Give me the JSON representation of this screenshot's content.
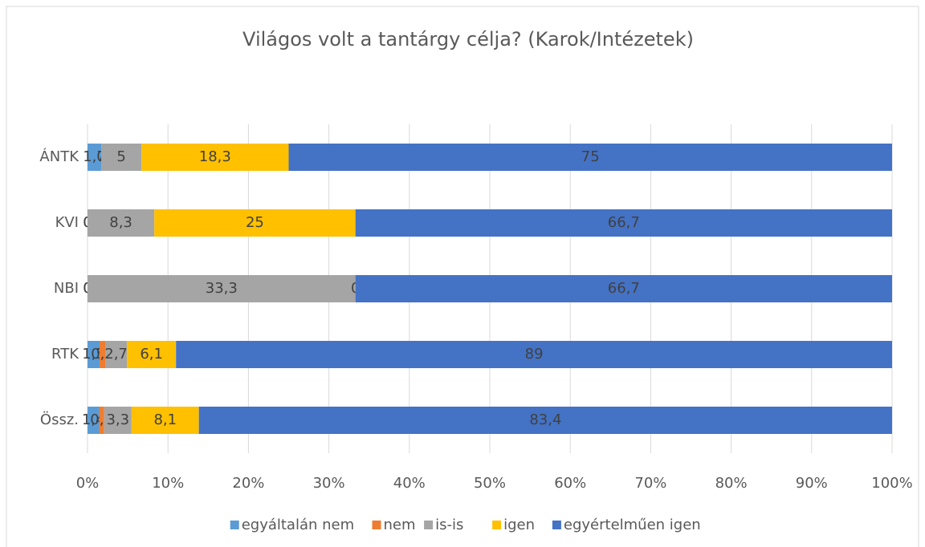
{
  "chart_data": {
    "type": "bar",
    "orientation": "horizontal",
    "stacking": "percent",
    "title": "Világos volt a tantárgy célja? (Karok/Intézetek)",
    "categories": [
      "ÁNTK",
      "KVI",
      "NBI",
      "RTK",
      "Össz."
    ],
    "series": [
      {
        "name": "egyáltalán nem",
        "color": "#5b9bd5",
        "values": [
          1.7,
          0,
          0,
          1.5,
          1.4
        ],
        "value_labels": [
          "1,7",
          "0",
          "0",
          "1,5",
          "1,4"
        ]
      },
      {
        "name": "nem",
        "color": "#ed7d31",
        "values": [
          0,
          0,
          0,
          0.7,
          0.6
        ],
        "value_labels": [
          "0",
          "0",
          "0",
          "0,7",
          "0,6"
        ]
      },
      {
        "name": "is-is",
        "color": "#a5a5a5",
        "values": [
          5,
          8.3,
          33.3,
          2.7,
          3.3
        ],
        "value_labels": [
          "5",
          "8,3",
          "33,3",
          "2,7",
          "3,3"
        ]
      },
      {
        "name": "igen",
        "color": "#ffc000",
        "values": [
          18.3,
          25,
          0,
          6.1,
          8.1
        ],
        "value_labels": [
          "18,3",
          "25",
          "0",
          "6,1",
          "8,1"
        ]
      },
      {
        "name": "egyértelműen igen",
        "color": "#4472c4",
        "values": [
          75,
          66.7,
          66.7,
          89,
          83.4
        ],
        "value_labels": [
          "75",
          "66,7",
          "66,7",
          "89",
          "83,4"
        ]
      }
    ],
    "xlim": [
      0,
      100
    ],
    "xticks": [
      {
        "value": 0,
        "label": "0%"
      },
      {
        "value": 10,
        "label": "10%"
      },
      {
        "value": 20,
        "label": "20%"
      },
      {
        "value": 30,
        "label": "30%"
      },
      {
        "value": 40,
        "label": "40%"
      },
      {
        "value": 50,
        "label": "50%"
      },
      {
        "value": 60,
        "label": "60%"
      },
      {
        "value": 70,
        "label": "70%"
      },
      {
        "value": 80,
        "label": "80%"
      },
      {
        "value": 90,
        "label": "90%"
      },
      {
        "value": 100,
        "label": "100%"
      }
    ],
    "grid": true,
    "legend": "bottom"
  }
}
